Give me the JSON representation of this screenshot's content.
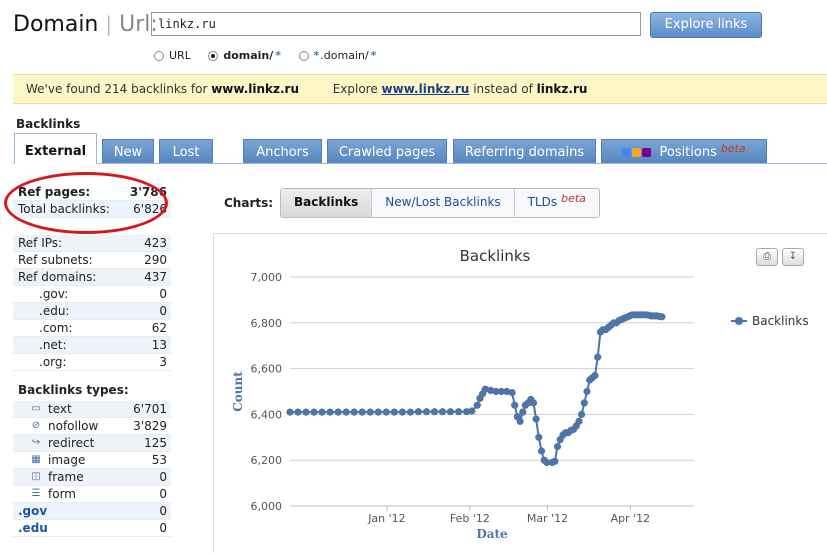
{
  "brand": {
    "domain": "Domain",
    "separator": "|",
    "url": "Url:"
  },
  "search": {
    "value": "linkz.ru",
    "button": "Explore links"
  },
  "scope": [
    {
      "label": "URL",
      "star": "",
      "selected": false
    },
    {
      "label": "domain/",
      "star": "*",
      "selected": true
    },
    {
      "label": ".domain/",
      "star": "*",
      "selected": false
    }
  ],
  "notice": {
    "found_prefix": "We've found 214 backlinks for",
    "found_domain": "www.linkz.ru",
    "explore_prefix": "Explore",
    "explore_link": "www.linkz.ru",
    "explore_middle": "instead of",
    "explore_target": "linkz.ru"
  },
  "section_label": "Backlinks",
  "tabs": [
    {
      "label": "External",
      "active": true
    },
    {
      "label": "New",
      "active": false
    },
    {
      "label": "Lost",
      "active": false
    },
    {
      "label": "Anchors",
      "active": false
    },
    {
      "label": "Crawled pages",
      "active": false
    },
    {
      "label": "Referring domains",
      "active": false
    },
    {
      "label": "Positions",
      "beta": "beta",
      "active": false
    }
  ],
  "stats": {
    "top": [
      {
        "label": "Ref pages:",
        "value": "3'786"
      },
      {
        "label": "Total backlinks:",
        "value": "6'826"
      }
    ],
    "rows": [
      {
        "label": "Ref IPs:",
        "value": "423",
        "indent": false
      },
      {
        "label": "Ref subnets:",
        "value": "290",
        "indent": false
      },
      {
        "label": "Ref domains:",
        "value": "437",
        "indent": false
      },
      {
        "label": ".gov:",
        "value": "0",
        "indent": true
      },
      {
        "label": ".edu:",
        "value": "0",
        "indent": true
      },
      {
        "label": ".com:",
        "value": "62",
        "indent": true
      },
      {
        "label": ".net:",
        "value": "13",
        "indent": true
      },
      {
        "label": ".org:",
        "value": "3",
        "indent": true
      }
    ],
    "types_title": "Backlinks types:",
    "types": [
      {
        "icon": "text-icon",
        "label": "text",
        "value": "6'701"
      },
      {
        "icon": "nofollow-icon",
        "label": "nofollow",
        "value": "3'829"
      },
      {
        "icon": "redirect-icon",
        "label": "redirect",
        "value": "125"
      },
      {
        "icon": "image-icon",
        "label": "image",
        "value": "53"
      },
      {
        "icon": "frame-icon",
        "label": "frame",
        "value": "0"
      },
      {
        "icon": "form-icon",
        "label": "form",
        "value": "0"
      }
    ],
    "links": [
      {
        "label": ".gov",
        "value": "0"
      },
      {
        "label": ".edu",
        "value": "0"
      }
    ]
  },
  "charts": {
    "label": "Charts:",
    "tabs": [
      {
        "label": "Backlinks",
        "active": true
      },
      {
        "label": "New/Lost Backlinks",
        "active": false
      },
      {
        "label": "TLDs",
        "beta": "beta",
        "active": false
      }
    ]
  },
  "colors": {
    "series": "#4f74a8",
    "accent": "#5787bf",
    "highlight": "#d6171c"
  },
  "chart_data": {
    "type": "line",
    "title": "Backlinks",
    "xlabel": "Date",
    "ylabel": "Count",
    "ylim": [
      6000,
      7000
    ],
    "yticks": [
      6000,
      6200,
      6400,
      6600,
      6800,
      7000
    ],
    "ytick_labels": [
      "6,000",
      "6,200",
      "6,400",
      "6,600",
      "6,800",
      "7,000"
    ],
    "xticks": [
      "2012-01-01",
      "2012-02-01",
      "2012-03-01",
      "2012-04-01"
    ],
    "xtick_labels": [
      "Jan '12",
      "Feb '12",
      "Mar '12",
      "Apr '12"
    ],
    "xlim": [
      "2011-12-01",
      "2012-04-30"
    ],
    "legend": "right",
    "grid": true,
    "series": [
      {
        "name": "Backlinks",
        "points": [
          [
            "2011-12-01",
            6410
          ],
          [
            "2011-12-04",
            6410
          ],
          [
            "2011-12-07",
            6410
          ],
          [
            "2011-12-10",
            6410
          ],
          [
            "2011-12-13",
            6410
          ],
          [
            "2011-12-16",
            6410
          ],
          [
            "2011-12-19",
            6410
          ],
          [
            "2011-12-22",
            6410
          ],
          [
            "2011-12-25",
            6410
          ],
          [
            "2011-12-28",
            6410
          ],
          [
            "2011-12-31",
            6410
          ],
          [
            "2012-01-03",
            6410
          ],
          [
            "2012-01-06",
            6410
          ],
          [
            "2012-01-09",
            6410
          ],
          [
            "2012-01-12",
            6410
          ],
          [
            "2012-01-15",
            6410
          ],
          [
            "2012-01-18",
            6412
          ],
          [
            "2012-01-21",
            6412
          ],
          [
            "2012-01-24",
            6412
          ],
          [
            "2012-01-27",
            6412
          ],
          [
            "2012-01-30",
            6412
          ],
          [
            "2012-02-02",
            6412
          ],
          [
            "2012-02-05",
            6412
          ],
          [
            "2012-02-07",
            6415
          ],
          [
            "2012-02-09",
            6440
          ],
          [
            "2012-02-10",
            6470
          ],
          [
            "2012-02-11",
            6490
          ],
          [
            "2012-02-12",
            6510
          ],
          [
            "2012-02-14",
            6505
          ],
          [
            "2012-02-16",
            6500
          ],
          [
            "2012-02-18",
            6500
          ],
          [
            "2012-02-20",
            6500
          ],
          [
            "2012-02-22",
            6495
          ],
          [
            "2012-02-23",
            6440
          ],
          [
            "2012-02-24",
            6390
          ],
          [
            "2012-02-25",
            6370
          ],
          [
            "2012-02-26",
            6410
          ],
          [
            "2012-02-27",
            6440
          ],
          [
            "2012-02-28",
            6450
          ],
          [
            "2012-02-29",
            6465
          ],
          [
            "2012-03-01",
            6450
          ],
          [
            "2012-03-02",
            6380
          ],
          [
            "2012-03-03",
            6300
          ],
          [
            "2012-03-04",
            6240
          ],
          [
            "2012-03-05",
            6200
          ],
          [
            "2012-03-06",
            6190
          ],
          [
            "2012-03-08",
            6190
          ],
          [
            "2012-03-09",
            6195
          ],
          [
            "2012-03-10",
            6260
          ],
          [
            "2012-03-11",
            6290
          ],
          [
            "2012-03-12",
            6310
          ],
          [
            "2012-03-13",
            6320
          ],
          [
            "2012-03-14",
            6320
          ],
          [
            "2012-03-15",
            6330
          ],
          [
            "2012-03-16",
            6335
          ],
          [
            "2012-03-17",
            6350
          ],
          [
            "2012-03-18",
            6370
          ],
          [
            "2012-03-19",
            6400
          ],
          [
            "2012-03-20",
            6450
          ],
          [
            "2012-03-21",
            6500
          ],
          [
            "2012-03-22",
            6550
          ],
          [
            "2012-03-23",
            6560
          ],
          [
            "2012-03-24",
            6570
          ],
          [
            "2012-03-25",
            6650
          ],
          [
            "2012-03-26",
            6760
          ],
          [
            "2012-03-27",
            6770
          ],
          [
            "2012-03-28",
            6770
          ],
          [
            "2012-03-29",
            6780
          ],
          [
            "2012-03-30",
            6790
          ],
          [
            "2012-03-31",
            6800
          ],
          [
            "2012-04-01",
            6800
          ],
          [
            "2012-04-02",
            6810
          ],
          [
            "2012-04-03",
            6815
          ],
          [
            "2012-04-04",
            6820
          ],
          [
            "2012-04-05",
            6825
          ],
          [
            "2012-04-06",
            6830
          ],
          [
            "2012-04-07",
            6835
          ],
          [
            "2012-04-08",
            6835
          ],
          [
            "2012-04-09",
            6835
          ],
          [
            "2012-04-10",
            6835
          ],
          [
            "2012-04-11",
            6835
          ],
          [
            "2012-04-12",
            6835
          ],
          [
            "2012-04-13",
            6833
          ],
          [
            "2012-04-14",
            6830
          ],
          [
            "2012-04-15",
            6830
          ],
          [
            "2012-04-16",
            6830
          ],
          [
            "2012-04-17",
            6828
          ],
          [
            "2012-04-18",
            6826
          ]
        ]
      }
    ]
  }
}
